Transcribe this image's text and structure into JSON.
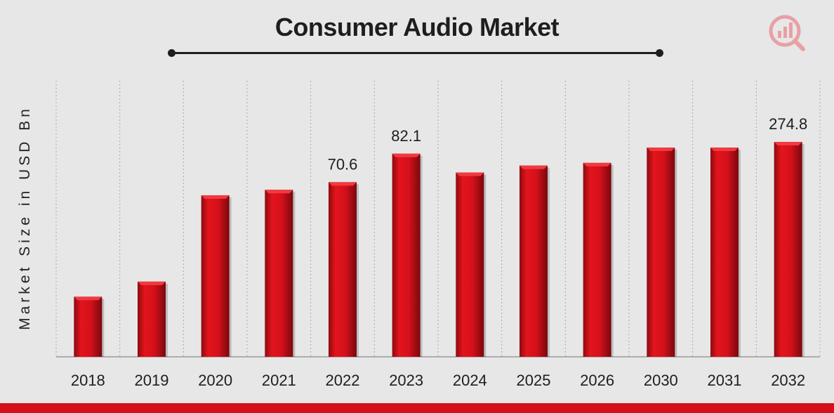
{
  "chart_data": {
    "type": "bar",
    "title": "Consumer Audio Market",
    "ylabel": "Market Size in USD Bn",
    "xlabel": "",
    "categories": [
      "2018",
      "2019",
      "2020",
      "2021",
      "2022",
      "2023",
      "2024",
      "2025",
      "2026",
      "2030",
      "2031",
      "2032"
    ],
    "values": [
      24.3,
      30.4,
      65.3,
      67.5,
      70.6,
      82.1,
      74.5,
      77.3,
      78.4,
      84.6,
      84.6,
      274.8
    ],
    "data_labels": [
      {
        "index": 4,
        "text": "70.6"
      },
      {
        "index": 5,
        "text": "82.1"
      },
      {
        "index": 11,
        "text": "274.8"
      }
    ],
    "grid": "vertical-dotted",
    "legend": "none",
    "bar_color": "#d4101a"
  }
}
